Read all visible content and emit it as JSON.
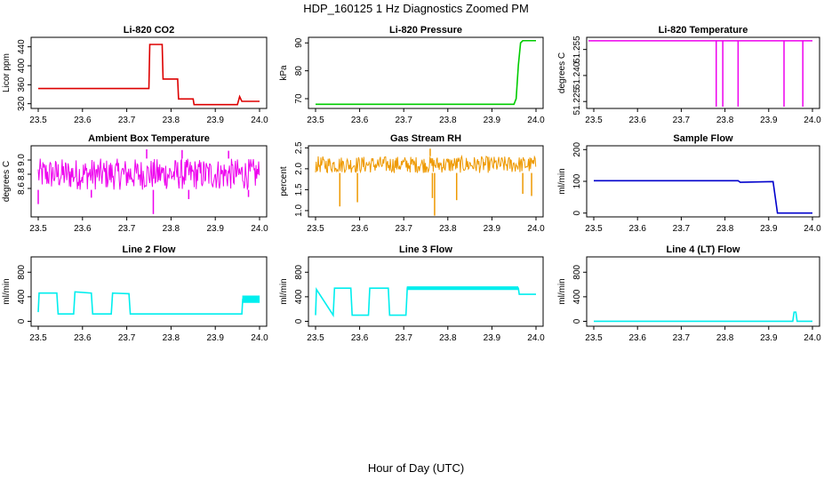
{
  "figure": {
    "title": "HDP_160125  1 Hz Diagnostics Zoomed PM",
    "xlabel": "Hour of Day (UTC)"
  },
  "chart_data": [
    {
      "type": "line",
      "title": "Li-820 CO2",
      "ylabel": "Licor ppm",
      "color": "#dd0000",
      "xlim": [
        23.5,
        24.0
      ],
      "ylim": [
        310,
        460
      ],
      "xticks": [
        "23.5",
        "23.6",
        "23.7",
        "23.8",
        "23.9",
        "24.0"
      ],
      "yticks": [
        "320",
        "360",
        "400",
        "440"
      ],
      "x": [
        23.5,
        23.75,
        23.752,
        23.78,
        23.782,
        23.815,
        23.817,
        23.85,
        23.852,
        23.95,
        23.955,
        23.96,
        23.962,
        24.0
      ],
      "y": [
        352,
        352,
        445,
        445,
        372,
        372,
        330,
        330,
        318,
        318,
        335,
        325,
        325,
        325
      ]
    },
    {
      "type": "line",
      "title": "Li-820 Pressure",
      "ylabel": "kPa",
      "color": "#00cc00",
      "xlim": [
        23.5,
        24.0
      ],
      "ylim": [
        66.5,
        92
      ],
      "xticks": [
        "23.5",
        "23.6",
        "23.7",
        "23.8",
        "23.9",
        "24.0"
      ],
      "yticks": [
        "70",
        "80",
        "90"
      ],
      "x": [
        23.5,
        23.95,
        23.955,
        23.96,
        23.965,
        23.97,
        24.0
      ],
      "y": [
        68.0,
        68.0,
        70,
        82,
        90,
        90.8,
        90.8
      ]
    },
    {
      "type": "line",
      "title": "Li-820 Temperature",
      "ylabel": "degrees C",
      "color": "#ee00ee",
      "xlim": [
        23.5,
        24.0
      ],
      "ylim": [
        51.221,
        51.262
      ],
      "xticks": [
        "23.5",
        "23.6",
        "23.7",
        "23.8",
        "23.9",
        "24.0"
      ],
      "yticks": [
        "51.225",
        "51.240",
        "51.255"
      ],
      "baseline": 51.26,
      "spikes": [
        {
          "x": 23.78,
          "low": 51.222
        },
        {
          "x": 23.795,
          "low": 51.222
        },
        {
          "x": 23.83,
          "low": 51.222
        },
        {
          "x": 23.935,
          "low": 51.222
        },
        {
          "x": 23.978,
          "low": 51.222
        }
      ]
    },
    {
      "type": "line",
      "title": "Ambient Box Temperature",
      "ylabel": "degrees C",
      "color": "#ee00ee",
      "xlim": [
        23.5,
        24.0
      ],
      "ylim": [
        8.2,
        9.2
      ],
      "xticks": [
        "23.5",
        "23.6",
        "23.7",
        "23.8",
        "23.9",
        "24.0"
      ],
      "yticks": [
        "8.6",
        "8.8",
        "9.0"
      ],
      "noise": {
        "from": 23.5,
        "to": 24.0,
        "low": 8.58,
        "high": 9.02,
        "step": 0.0015
      },
      "spikes": [
        {
          "x": 23.5,
          "low": 8.38
        },
        {
          "x": 23.62,
          "low": 8.47
        },
        {
          "x": 23.76,
          "low": 8.24
        },
        {
          "x": 23.84,
          "low": 8.45
        },
        {
          "x": 23.975,
          "low": 8.48
        },
        {
          "x": 23.745,
          "high": 9.15
        },
        {
          "x": 23.825,
          "high": 9.14
        },
        {
          "x": 23.93,
          "high": 9.13
        }
      ]
    },
    {
      "type": "line",
      "title": "Gas Stream RH",
      "ylabel": "percent",
      "color": "#ee9900",
      "xlim": [
        23.5,
        24.0
      ],
      "ylim": [
        0.85,
        2.55
      ],
      "xticks": [
        "23.5",
        "23.6",
        "23.7",
        "23.8",
        "23.9",
        "24.0"
      ],
      "yticks": [
        "1.0",
        "1.5",
        "2.0",
        "2.5"
      ],
      "noise": {
        "from": 23.5,
        "to": 24.0,
        "low": 1.9,
        "high": 2.3,
        "step": 0.0015
      },
      "spikes": [
        {
          "x": 23.555,
          "low": 1.1
        },
        {
          "x": 23.595,
          "low": 1.2
        },
        {
          "x": 23.77,
          "low": 0.88
        },
        {
          "x": 23.765,
          "low": 1.3
        },
        {
          "x": 23.82,
          "low": 1.25
        },
        {
          "x": 23.97,
          "low": 1.4
        },
        {
          "x": 23.99,
          "low": 1.35
        },
        {
          "x": 23.76,
          "high": 2.48
        }
      ]
    },
    {
      "type": "line",
      "title": "Sample Flow",
      "ylabel": "ml/min",
      "color": "#0000cc",
      "xlim": [
        23.5,
        24.0
      ],
      "ylim": [
        -12,
        212
      ],
      "xticks": [
        "23.5",
        "23.6",
        "23.7",
        "23.8",
        "23.9",
        "24.0"
      ],
      "yticks": [
        "0",
        "100",
        "200"
      ],
      "x": [
        23.5,
        23.83,
        23.835,
        23.91,
        23.915,
        23.92,
        24.0
      ],
      "y": [
        102,
        102,
        97,
        99,
        50,
        0,
        0
      ]
    },
    {
      "type": "line",
      "title": "Line 2 Flow",
      "ylabel": "ml/min",
      "color": "#00eeee",
      "xlim": [
        23.5,
        24.0
      ],
      "ylim": [
        -80,
        1050
      ],
      "xticks": [
        "23.5",
        "23.6",
        "23.7",
        "23.8",
        "23.9",
        "24.0"
      ],
      "yticks": [
        "0",
        "400",
        "800"
      ],
      "x": [
        23.5,
        23.502,
        23.542,
        23.545,
        23.58,
        23.583,
        23.62,
        23.623,
        23.665,
        23.668,
        23.705,
        23.708,
        23.96,
        23.962,
        24.0
      ],
      "y": [
        150,
        460,
        460,
        120,
        120,
        480,
        460,
        120,
        120,
        460,
        450,
        120,
        120,
        360,
        360
      ],
      "band": {
        "from": 23.962,
        "to": 24.0,
        "low": 300,
        "high": 420
      }
    },
    {
      "type": "line",
      "title": "Line 3 Flow",
      "ylabel": "ml/min",
      "color": "#00eeee",
      "xlim": [
        23.5,
        24.0
      ],
      "ylim": [
        -80,
        1050
      ],
      "xticks": [
        "23.5",
        "23.6",
        "23.7",
        "23.8",
        "23.9",
        "24.0"
      ],
      "yticks": [
        "0",
        "400",
        "800"
      ],
      "x": [
        23.5,
        23.502,
        23.54,
        23.543,
        23.58,
        23.583,
        23.62,
        23.623,
        23.665,
        23.668,
        23.705,
        23.708,
        23.96,
        23.962,
        24.0
      ],
      "y": [
        100,
        520,
        100,
        540,
        540,
        100,
        100,
        540,
        540,
        100,
        100,
        540,
        540,
        440,
        440
      ],
      "band": {
        "from": 23.708,
        "to": 23.96,
        "low": 510,
        "high": 570
      }
    },
    {
      "type": "line",
      "title": "Line 4 (LT) Flow",
      "ylabel": "ml/min",
      "color": "#00eeee",
      "xlim": [
        23.5,
        24.0
      ],
      "ylim": [
        -80,
        1050
      ],
      "xticks": [
        "23.5",
        "23.6",
        "23.7",
        "23.8",
        "23.9",
        "24.0"
      ],
      "yticks": [
        "0",
        "400",
        "800"
      ],
      "x": [
        23.5,
        23.955,
        23.958,
        23.962,
        23.965,
        24.0
      ],
      "y": [
        0,
        0,
        150,
        150,
        0,
        0
      ]
    }
  ]
}
